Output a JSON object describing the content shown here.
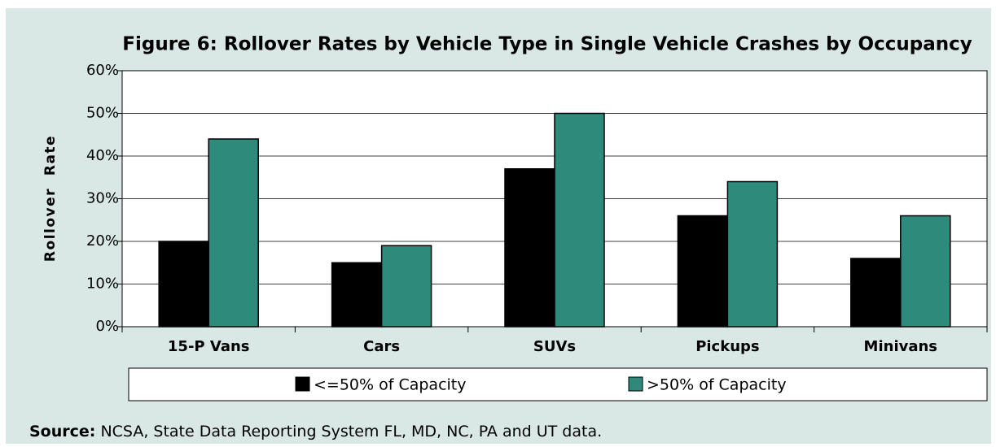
{
  "chart_data": {
    "type": "bar",
    "title": "Figure 6: Rollover Rates by Vehicle Type in Single Vehicle Crashes by Occupancy",
    "y_label": "Rollover  Rate",
    "categories": [
      "15-P Vans",
      "Cars",
      "SUVs",
      "Pickups",
      "Minivans"
    ],
    "series": [
      {
        "name": "<=50% of Capacity",
        "color": "#000000",
        "values": [
          20,
          15,
          37,
          26,
          16
        ]
      },
      {
        "name": ">50% of Capacity",
        "color": "#2e8b7b",
        "values": [
          44,
          19,
          50,
          34,
          26
        ]
      }
    ],
    "ylim": [
      0,
      60
    ],
    "yticks": [
      {
        "value": 0,
        "label": "0%"
      },
      {
        "value": 10,
        "label": "10%"
      },
      {
        "value": 20,
        "label": "20%"
      },
      {
        "value": 30,
        "label": "30%"
      },
      {
        "value": 40,
        "label": "40%"
      },
      {
        "value": 50,
        "label": "50%"
      },
      {
        "value": 60,
        "label": "60%"
      }
    ],
    "grid": true,
    "legend": "bottom",
    "source_label": "Source:",
    "source": "NCSA, State Data Reporting System FL, MD, NC, PA and UT data."
  }
}
